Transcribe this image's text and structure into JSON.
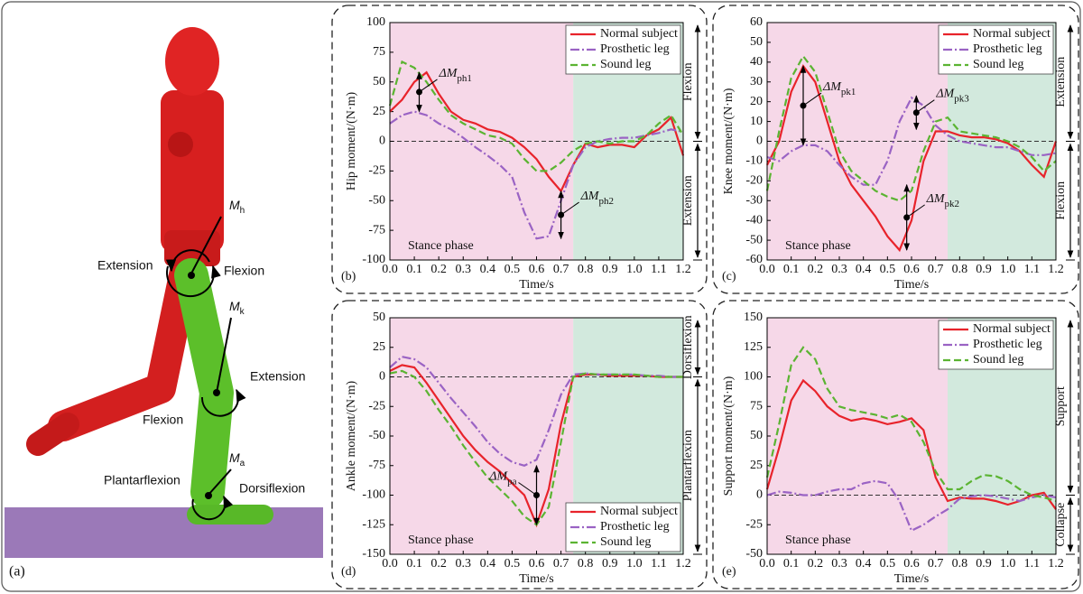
{
  "illustration": {
    "panel_label": "(a)",
    "labels": [
      {
        "text": "Extension"
      },
      {
        "text": "Flexion"
      },
      {
        "text": "M",
        "sub": "h"
      },
      {
        "text": "M",
        "sub": "k"
      },
      {
        "text": "Extension"
      },
      {
        "text": "Flexion"
      },
      {
        "text": "M",
        "sub": "a"
      },
      {
        "text": "Plantarflexion"
      },
      {
        "text": "Dorsiflexion"
      }
    ]
  },
  "chart_data": [
    {
      "type": "line",
      "panel_label": "(b)",
      "xlabel": "Time/s",
      "ylabel": "Hip moment/(N·m)",
      "x": [
        0,
        0.05,
        0.1,
        0.15,
        0.2,
        0.25,
        0.3,
        0.35,
        0.4,
        0.45,
        0.5,
        0.55,
        0.6,
        0.65,
        0.7,
        0.75,
        0.8,
        0.85,
        0.9,
        0.95,
        1.0,
        1.05,
        1.1,
        1.15,
        1.2
      ],
      "xlim": [
        0,
        1.2
      ],
      "xticks": [
        {
          "value": 0,
          "label": "0.0"
        },
        {
          "value": 0.1,
          "label": "0.1"
        },
        {
          "value": 0.2,
          "label": "0.2"
        },
        {
          "value": 0.3,
          "label": "0.3"
        },
        {
          "value": 0.4,
          "label": "0.4"
        },
        {
          "value": 0.5,
          "label": "0.5"
        },
        {
          "value": 0.6,
          "label": "0.6"
        },
        {
          "value": 0.7,
          "label": "0.7"
        },
        {
          "value": 0.8,
          "label": "0.8"
        },
        {
          "value": 0.9,
          "label": "0.9"
        },
        {
          "value": 1.0,
          "label": "1.0"
        },
        {
          "value": 1.1,
          "label": "1.1"
        },
        {
          "value": 1.2,
          "label": "1.2"
        }
      ],
      "ylim": [
        -100,
        100
      ],
      "yticks": [
        -100,
        -75,
        -50,
        -25,
        0,
        25,
        50,
        75,
        100
      ],
      "hline": 0,
      "legend": "upper right",
      "regions": [
        {
          "x": [
            0,
            0.75
          ],
          "color": "#f6d8e8",
          "label": "Stance phase"
        },
        {
          "x": [
            0.75,
            1.2
          ],
          "color": "#d2e9dd"
        }
      ],
      "series": [
        {
          "name": "Normal subject",
          "color": "#e8232b",
          "style": "solid",
          "values": [
            25,
            35,
            50,
            58,
            40,
            25,
            18,
            15,
            10,
            8,
            3,
            -5,
            -15,
            -30,
            -42,
            -20,
            -2,
            -5,
            -3,
            -3,
            -5,
            5,
            10,
            20,
            -12
          ]
        },
        {
          "name": "Prosthetic leg",
          "color": "#9a63c4",
          "style": "dashdot",
          "values": [
            15,
            22,
            25,
            22,
            15,
            10,
            3,
            -5,
            -12,
            -20,
            -30,
            -60,
            -82,
            -80,
            -50,
            -20,
            -5,
            0,
            2,
            3,
            3,
            5,
            7,
            10,
            8
          ]
        },
        {
          "name": "Sound leg",
          "color": "#5bb432",
          "style": "dashed",
          "values": [
            30,
            67,
            62,
            50,
            35,
            22,
            15,
            10,
            5,
            3,
            -2,
            -15,
            -25,
            -25,
            -18,
            -8,
            -2,
            0,
            -2,
            0,
            0,
            5,
            15,
            22,
            5
          ]
        }
      ],
      "annotations": [
        {
          "text": "ΔM",
          "sub": "ph1",
          "x": 0.12,
          "y": [
            25,
            58
          ],
          "side": "right"
        },
        {
          "text": "ΔM",
          "sub": "ph2",
          "x": 0.7,
          "y": [
            -82,
            -42
          ],
          "side": "right"
        }
      ],
      "side_labels": [
        {
          "text": "Flexion",
          "y": [
            0,
            100
          ]
        },
        {
          "text": "Extension",
          "y": [
            -100,
            0
          ]
        }
      ]
    },
    {
      "type": "line",
      "panel_label": "(c)",
      "xlabel": "Time/s",
      "ylabel": "Knee moment/(N·m)",
      "x": [
        0,
        0.05,
        0.1,
        0.15,
        0.2,
        0.25,
        0.3,
        0.35,
        0.4,
        0.45,
        0.5,
        0.55,
        0.6,
        0.65,
        0.7,
        0.75,
        0.8,
        0.85,
        0.9,
        0.95,
        1.0,
        1.05,
        1.1,
        1.15,
        1.2
      ],
      "xlim": [
        0,
        1.2
      ],
      "xticks": [
        {
          "value": 0,
          "label": "0.0"
        },
        {
          "value": 0.1,
          "label": "0.1"
        },
        {
          "value": 0.2,
          "label": "0.2"
        },
        {
          "value": 0.3,
          "label": "0.3"
        },
        {
          "value": 0.4,
          "label": "0.4"
        },
        {
          "value": 0.5,
          "label": "0.5"
        },
        {
          "value": 0.6,
          "label": "0.6"
        },
        {
          "value": 0.7,
          "label": "0.7"
        },
        {
          "value": 0.8,
          "label": "0.8"
        },
        {
          "value": 0.9,
          "label": "0.9"
        },
        {
          "value": 1.0,
          "label": "1.0"
        },
        {
          "value": 1.1,
          "label": "1.1"
        },
        {
          "value": 1.2,
          "label": "1.2"
        }
      ],
      "ylim": [
        -60,
        60
      ],
      "yticks": [
        -60,
        -50,
        -40,
        -30,
        -20,
        -10,
        0,
        10,
        20,
        30,
        40,
        50,
        60
      ],
      "hline": 0,
      "legend": "upper right",
      "regions": [
        {
          "x": [
            0,
            0.75
          ],
          "color": "#f6d8e8",
          "label": "Stance phase"
        },
        {
          "x": [
            0.75,
            1.2
          ],
          "color": "#d2e9dd"
        }
      ],
      "series": [
        {
          "name": "Normal subject",
          "color": "#e8232b",
          "style": "solid",
          "values": [
            -12,
            0,
            25,
            38,
            30,
            10,
            -10,
            -22,
            -30,
            -38,
            -48,
            -55,
            -40,
            -10,
            5,
            5,
            3,
            2,
            2,
            1,
            -1,
            -5,
            -12,
            -18,
            0
          ]
        },
        {
          "name": "Prosthetic leg",
          "color": "#9a63c4",
          "style": "dashdot",
          "values": [
            -8,
            -10,
            -5,
            -2,
            -2,
            -5,
            -12,
            -18,
            -22,
            -22,
            -10,
            10,
            22,
            18,
            8,
            3,
            0,
            -1,
            -2,
            -3,
            -3,
            -5,
            -7,
            -7,
            -6
          ]
        },
        {
          "name": "Sound leg",
          "color": "#5bb432",
          "style": "dashed",
          "values": [
            -25,
            5,
            32,
            43,
            35,
            15,
            -5,
            -15,
            -20,
            -25,
            -28,
            -30,
            -25,
            -5,
            10,
            12,
            5,
            4,
            3,
            2,
            0,
            -3,
            -8,
            -15,
            -10
          ]
        }
      ],
      "annotations": [
        {
          "text": "ΔM",
          "sub": "pk1",
          "x": 0.15,
          "y": [
            -2,
            38
          ],
          "side": "right"
        },
        {
          "text": "ΔM",
          "sub": "pk2",
          "x": 0.58,
          "y": [
            -55,
            -22
          ],
          "side": "right"
        },
        {
          "text": "ΔM",
          "sub": "pk3",
          "x": 0.62,
          "y": [
            6,
            23
          ],
          "side": "right"
        }
      ],
      "side_labels": [
        {
          "text": "Extension",
          "y": [
            0,
            60
          ]
        },
        {
          "text": "Flexion",
          "y": [
            -60,
            0
          ]
        }
      ]
    },
    {
      "type": "line",
      "panel_label": "(d)",
      "xlabel": "Time/s",
      "ylabel": "Ankle moment/(N·m)",
      "x": [
        0,
        0.05,
        0.1,
        0.15,
        0.2,
        0.25,
        0.3,
        0.35,
        0.4,
        0.45,
        0.5,
        0.55,
        0.6,
        0.65,
        0.7,
        0.75,
        0.8,
        0.85,
        0.9,
        0.95,
        1.0,
        1.05,
        1.1,
        1.15,
        1.2
      ],
      "xlim": [
        0,
        1.2
      ],
      "xticks": [
        {
          "value": 0,
          "label": "0.0"
        },
        {
          "value": 0.1,
          "label": "0.1"
        },
        {
          "value": 0.2,
          "label": "0.2"
        },
        {
          "value": 0.3,
          "label": "0.3"
        },
        {
          "value": 0.4,
          "label": "0.4"
        },
        {
          "value": 0.5,
          "label": "0.5"
        },
        {
          "value": 0.6,
          "label": "0.6"
        },
        {
          "value": 0.7,
          "label": "0.7"
        },
        {
          "value": 0.8,
          "label": "0.8"
        },
        {
          "value": 0.9,
          "label": "0.9"
        },
        {
          "value": 1.0,
          "label": "1.0"
        },
        {
          "value": 1.1,
          "label": "1.1"
        },
        {
          "value": 1.2,
          "label": "1.2"
        }
      ],
      "ylim": [
        -150,
        50
      ],
      "yticks": [
        -150,
        -125,
        -100,
        -75,
        -50,
        -25,
        0,
        25,
        50
      ],
      "hline": 0,
      "legend": "lower right",
      "regions": [
        {
          "x": [
            0,
            0.75
          ],
          "color": "#f6d8e8",
          "label": "Stance phase"
        },
        {
          "x": [
            0.75,
            1.2
          ],
          "color": "#d2e9dd"
        }
      ],
      "series": [
        {
          "name": "Normal subject",
          "color": "#e8232b",
          "style": "solid",
          "values": [
            5,
            10,
            8,
            -5,
            -20,
            -35,
            -50,
            -62,
            -72,
            -80,
            -90,
            -100,
            -125,
            -95,
            -40,
            0,
            2,
            2,
            1,
            1,
            1,
            1,
            0,
            0,
            0
          ]
        },
        {
          "name": "Prosthetic leg",
          "color": "#9a63c4",
          "style": "dashdot",
          "values": [
            8,
            17,
            15,
            8,
            -5,
            -18,
            -30,
            -42,
            -55,
            -65,
            -72,
            -75,
            -70,
            -45,
            -15,
            2,
            3,
            2,
            2,
            2,
            2,
            1,
            1,
            0,
            0
          ]
        },
        {
          "name": "Sound leg",
          "color": "#5bb432",
          "style": "dashed",
          "values": [
            3,
            5,
            0,
            -12,
            -28,
            -42,
            -58,
            -72,
            -85,
            -95,
            -105,
            -118,
            -125,
            -110,
            -55,
            0,
            3,
            2,
            2,
            2,
            2,
            1,
            0,
            0,
            0
          ]
        }
      ],
      "annotations": [
        {
          "text": "ΔM",
          "sub": "pa",
          "x": 0.6,
          "y": [
            -125,
            -75
          ],
          "side": "left"
        }
      ],
      "side_labels": [
        {
          "text": "Dorsiflexion",
          "y": [
            0,
            50
          ]
        },
        {
          "text": "Plantarflexion",
          "y": [
            -150,
            0
          ]
        }
      ]
    },
    {
      "type": "line",
      "panel_label": "(e)",
      "xlabel": "Time/s",
      "ylabel": "Support moment/(N·m)",
      "x": [
        0,
        0.05,
        0.1,
        0.15,
        0.2,
        0.25,
        0.3,
        0.35,
        0.4,
        0.45,
        0.5,
        0.55,
        0.6,
        0.65,
        0.7,
        0.75,
        0.8,
        0.85,
        0.9,
        0.95,
        1.0,
        1.05,
        1.1,
        1.15,
        1.2
      ],
      "xlim": [
        0,
        1.2
      ],
      "xticks": [
        {
          "value": 0,
          "label": "0.0"
        },
        {
          "value": 0.1,
          "label": "0.1"
        },
        {
          "value": 0.2,
          "label": "0.2"
        },
        {
          "value": 0.3,
          "label": "0.3"
        },
        {
          "value": 0.4,
          "label": "0.4"
        },
        {
          "value": 0.5,
          "label": "0.5"
        },
        {
          "value": 0.6,
          "label": "0.6"
        },
        {
          "value": 0.7,
          "label": "0.7"
        },
        {
          "value": 0.8,
          "label": "0.8"
        },
        {
          "value": 0.9,
          "label": "0.9"
        },
        {
          "value": 1.0,
          "label": "1.0"
        },
        {
          "value": 1.1,
          "label": "1.1"
        },
        {
          "value": 1.2,
          "label": "1.2"
        }
      ],
      "ylim": [
        -50,
        150
      ],
      "yticks": [
        -50,
        -25,
        0,
        25,
        50,
        75,
        100,
        125,
        150
      ],
      "hline": 0,
      "legend": "upper right",
      "regions": [
        {
          "x": [
            0,
            0.75
          ],
          "color": "#f6d8e8",
          "label": "Stance phase"
        },
        {
          "x": [
            0.75,
            1.2
          ],
          "color": "#d2e9dd"
        }
      ],
      "series": [
        {
          "name": "Normal subject",
          "color": "#e8232b",
          "style": "solid",
          "values": [
            5,
            40,
            80,
            97,
            88,
            75,
            67,
            63,
            65,
            63,
            60,
            62,
            65,
            55,
            15,
            -5,
            -2,
            -3,
            -3,
            -5,
            -8,
            -5,
            0,
            2,
            -12
          ]
        },
        {
          "name": "Prosthetic leg",
          "color": "#9a63c4",
          "style": "dashdot",
          "values": [
            0,
            3,
            2,
            0,
            0,
            3,
            5,
            5,
            10,
            12,
            10,
            -5,
            -30,
            -25,
            -18,
            -12,
            -3,
            -1,
            0,
            -1,
            -3,
            -5,
            -2,
            0,
            -2
          ]
        },
        {
          "name": "Sound leg",
          "color": "#5bb432",
          "style": "dashed",
          "values": [
            15,
            60,
            110,
            125,
            115,
            90,
            75,
            72,
            70,
            68,
            65,
            68,
            62,
            45,
            20,
            5,
            5,
            12,
            17,
            16,
            12,
            5,
            0,
            -2,
            -5
          ]
        }
      ],
      "annotations": [],
      "side_labels": [
        {
          "text": "Support",
          "y": [
            0,
            150
          ]
        },
        {
          "text": "Collapse",
          "y": [
            -50,
            0
          ]
        }
      ]
    }
  ]
}
